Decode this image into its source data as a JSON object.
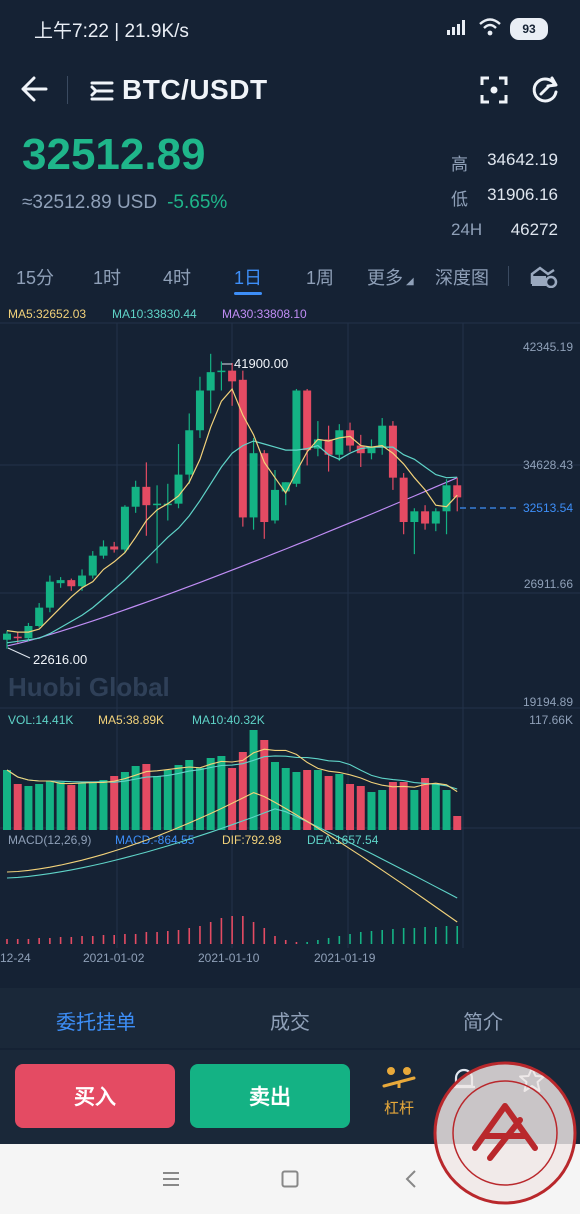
{
  "status_bar": {
    "time_speed": "上午7:22 | 21.9K/s",
    "battery": "93"
  },
  "header": {
    "pair": "BTC/USDT"
  },
  "ticker": {
    "last_price": "32512.89",
    "usd_equiv": "≈32512.89 USD",
    "change_pct": "-5.65%",
    "high_label": "高",
    "high_value": "34642.19",
    "low_label": "低",
    "low_value": "31906.16",
    "vol_label": "24H",
    "vol_value": "46272"
  },
  "intervals": [
    "15分",
    "1时",
    "4时",
    "1日",
    "1周",
    "更多",
    "深度图"
  ],
  "active_interval": "1日",
  "indicators": {
    "ma5": "MA5:32652.03",
    "ma10": "MA10:33830.44",
    "ma30": "MA30:33808.10",
    "vol": "VOL:14.41K",
    "vol_ma5": "MA5:38.89K",
    "vol_ma10": "MA10:40.32K",
    "vol_max": "117.66K",
    "macd_params": "MACD(12,26,9)",
    "macd": "MACD:-864.55",
    "dif": "DIF:792.98",
    "dea": "DEA:1657.54"
  },
  "chart_data": {
    "type": "candlestick",
    "y_axis_labels": [
      "42345.19",
      "34628.43",
      "26911.66",
      "19194.89"
    ],
    "ylim": [
      19194.89,
      42345.19
    ],
    "current_price_line": "32513.54",
    "max_marker": "41900.00",
    "min_marker": "22616.00",
    "x_tick_labels": [
      "12-24",
      "2021-01-02",
      "2021-01-10",
      "2021-01-19"
    ],
    "watermark_text": "Huobi Global",
    "candles": [
      {
        "o": 23200,
        "h": 23800,
        "l": 22616,
        "c": 23600
      },
      {
        "o": 23400,
        "h": 23700,
        "l": 23000,
        "c": 23300
      },
      {
        "o": 23300,
        "h": 24300,
        "l": 23100,
        "c": 24100
      },
      {
        "o": 24100,
        "h": 25600,
        "l": 24000,
        "c": 25300
      },
      {
        "o": 25300,
        "h": 27400,
        "l": 25000,
        "c": 27000
      },
      {
        "o": 26900,
        "h": 27300,
        "l": 26600,
        "c": 27100
      },
      {
        "o": 27100,
        "h": 27200,
        "l": 26400,
        "c": 26700
      },
      {
        "o": 26700,
        "h": 27800,
        "l": 26400,
        "c": 27400
      },
      {
        "o": 27400,
        "h": 29000,
        "l": 27200,
        "c": 28700
      },
      {
        "o": 28700,
        "h": 29700,
        "l": 28500,
        "c": 29300
      },
      {
        "o": 29300,
        "h": 29600,
        "l": 28900,
        "c": 29100
      },
      {
        "o": 29100,
        "h": 32000,
        "l": 28900,
        "c": 31900
      },
      {
        "o": 31900,
        "h": 33600,
        "l": 31500,
        "c": 33200
      },
      {
        "o": 33200,
        "h": 34800,
        "l": 30000,
        "c": 32000
      },
      {
        "o": 32000,
        "h": 33300,
        "l": 28200,
        "c": 32100
      },
      {
        "o": 32100,
        "h": 33400,
        "l": 31000,
        "c": 32100
      },
      {
        "o": 32100,
        "h": 36000,
        "l": 31800,
        "c": 34000
      },
      {
        "o": 34000,
        "h": 38000,
        "l": 33400,
        "c": 36900
      },
      {
        "o": 36900,
        "h": 40400,
        "l": 36400,
        "c": 39500
      },
      {
        "o": 39500,
        "h": 41900,
        "l": 38000,
        "c": 40700
      },
      {
        "o": 40700,
        "h": 41400,
        "l": 39500,
        "c": 40800
      },
      {
        "o": 40800,
        "h": 41300,
        "l": 38500,
        "c": 40100
      },
      {
        "o": 40200,
        "h": 40800,
        "l": 30600,
        "c": 31200
      },
      {
        "o": 31200,
        "h": 36400,
        "l": 30400,
        "c": 35400
      },
      {
        "o": 35400,
        "h": 35600,
        "l": 29800,
        "c": 30900
      },
      {
        "o": 31000,
        "h": 34300,
        "l": 30800,
        "c": 33000
      },
      {
        "o": 32900,
        "h": 33500,
        "l": 32000,
        "c": 33500
      },
      {
        "o": 33400,
        "h": 39600,
        "l": 33200,
        "c": 39500
      },
      {
        "o": 39500,
        "h": 39600,
        "l": 34600,
        "c": 35600
      },
      {
        "o": 35700,
        "h": 37500,
        "l": 35200,
        "c": 36300
      },
      {
        "o": 36300,
        "h": 37200,
        "l": 34200,
        "c": 35300
      },
      {
        "o": 35300,
        "h": 37300,
        "l": 34900,
        "c": 36900
      },
      {
        "o": 36900,
        "h": 37400,
        "l": 35500,
        "c": 35900
      },
      {
        "o": 35900,
        "h": 36600,
        "l": 34500,
        "c": 35400
      },
      {
        "o": 35400,
        "h": 36300,
        "l": 35000,
        "c": 35800
      },
      {
        "o": 35800,
        "h": 37700,
        "l": 35300,
        "c": 37200
      },
      {
        "o": 37200,
        "h": 37500,
        "l": 33000,
        "c": 33800
      },
      {
        "o": 33800,
        "h": 34100,
        "l": 30100,
        "c": 30900
      },
      {
        "o": 30900,
        "h": 31800,
        "l": 28800,
        "c": 31600
      },
      {
        "o": 31600,
        "h": 32000,
        "l": 30400,
        "c": 30800
      },
      {
        "o": 30800,
        "h": 31800,
        "l": 30300,
        "c": 31600
      },
      {
        "o": 31600,
        "h": 33700,
        "l": 30100,
        "c": 33300
      },
      {
        "o": 33300,
        "h": 33800,
        "l": 31600,
        "c": 32513
      }
    ],
    "ma5": [
      23800,
      23700,
      23700,
      23900,
      24600,
      25300,
      26000,
      26600,
      27000,
      27800,
      28300,
      28900,
      29900,
      31000,
      31700,
      32100,
      32600,
      33500,
      35000,
      37100,
      38800,
      39600,
      37900,
      36600,
      34800,
      33800,
      32800,
      34200,
      35500,
      36300,
      36200,
      36400,
      36500,
      35900,
      35800,
      35900,
      35400,
      34700,
      33800,
      33000,
      32000,
      31900,
      32652
    ],
    "ma10": [
      23000,
      23100,
      23200,
      23300,
      23600,
      24000,
      24400,
      24800,
      25300,
      25900,
      26500,
      27100,
      27800,
      28500,
      29200,
      29900,
      30500,
      31300,
      32300,
      33400,
      34500,
      35400,
      35900,
      36200,
      36000,
      35800,
      35600,
      35600,
      35700,
      35900,
      35300,
      35000,
      35400,
      35700,
      35800,
      35800,
      35800,
      35300,
      35000,
      34500,
      34000,
      33800,
      33830
    ]
  },
  "volume_bars": [
    60,
    46,
    44,
    46,
    49,
    48,
    45,
    47,
    48,
    50,
    54,
    58,
    64,
    66,
    54,
    60,
    65,
    70,
    62,
    72,
    74,
    62,
    78,
    100,
    90,
    68,
    62,
    58,
    60,
    60,
    54,
    56,
    46,
    44,
    38,
    40,
    48,
    48,
    40,
    52,
    46,
    40,
    14
  ],
  "macd_hist": [
    5,
    5,
    5,
    6,
    6,
    7,
    7,
    8,
    8,
    9,
    9,
    10,
    10,
    12,
    12,
    13,
    14,
    16,
    18,
    22,
    26,
    28,
    28,
    22,
    16,
    8,
    4,
    2,
    -2,
    -4,
    -6,
    -8,
    -10,
    -12,
    -13,
    -14,
    -15,
    -16,
    -16,
    -17,
    -17,
    -18,
    -18
  ],
  "bottom_tabs": [
    "委托挂单",
    "成交",
    "简介"
  ],
  "actions": {
    "buy": "买入",
    "sell": "卖出",
    "leverage": "杠杆"
  },
  "colors": {
    "up": "#14b284",
    "down": "#e44b63",
    "accent": "#3d8ef7",
    "ma5": "#f2d27a",
    "ma10": "#5fd4c8",
    "ma30": "#c08df5"
  }
}
